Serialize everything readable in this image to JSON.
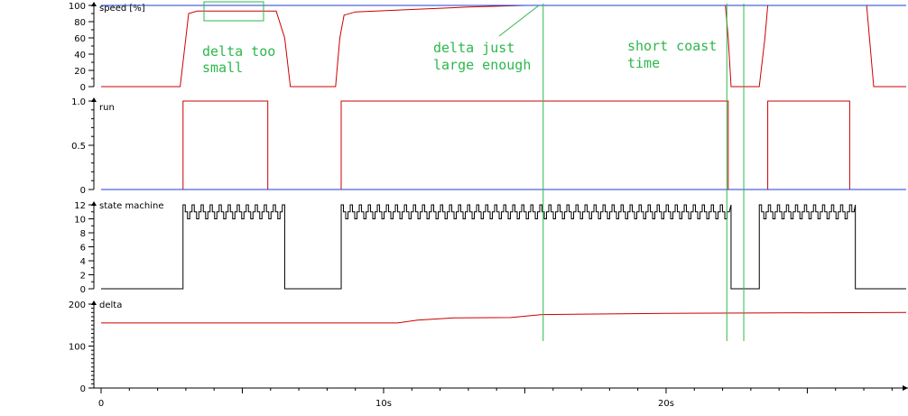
{
  "chart_data": [
    {
      "type": "line",
      "title": "speed [%]",
      "xlabel": "",
      "ylabel": "speed [%]",
      "ylim": [
        0,
        100
      ],
      "yticks": [
        "100",
        "80",
        "60",
        "40",
        "20",
        "0"
      ],
      "xlim": [
        0,
        28.5
      ],
      "series": [
        {
          "color": "#cc0000",
          "x": [
            0,
            2.8,
            3.0,
            3.1,
            3.4,
            6.2,
            6.5,
            6.7,
            8.3,
            8.45,
            8.6,
            9.0,
            11.0,
            13.0,
            15.0,
            15.6,
            22.1,
            22.2,
            22.3,
            22.7,
            23.3,
            23.5,
            23.6,
            27.1,
            27.2,
            27.35,
            28.5
          ],
          "values": [
            0,
            0,
            60,
            90,
            93,
            93,
            60,
            0,
            0,
            60,
            88,
            92,
            95,
            98,
            100,
            100,
            100,
            60,
            0,
            0,
            0,
            60,
            100,
            100,
            60,
            0,
            0
          ]
        },
        {
          "color": "#1f3fd0",
          "x": [
            0,
            28.5
          ],
          "values": [
            100,
            100
          ]
        }
      ]
    },
    {
      "type": "line",
      "title": "run",
      "ylabel": "run",
      "ylim": [
        0,
        1.0
      ],
      "yticks": [
        "1.0",
        "0.5",
        "0"
      ],
      "xlim": [
        0,
        28.5
      ],
      "series": [
        {
          "color": "#cc0000",
          "x": [
            0,
            2.9,
            2.9,
            5.9,
            5.9,
            8.5,
            8.5,
            22.2,
            22.2,
            23.6,
            23.6,
            26.5,
            26.5,
            28.5
          ],
          "values": [
            0,
            0,
            1,
            1,
            0,
            0,
            1,
            1,
            0,
            0,
            1,
            1,
            0,
            0
          ]
        },
        {
          "color": "#1f3fd0",
          "x": [
            0,
            28.5
          ],
          "values": [
            0,
            0
          ]
        }
      ]
    },
    {
      "type": "line",
      "title": "state machine",
      "ylabel": "state machine",
      "ylim": [
        0,
        12
      ],
      "yticks": [
        "12",
        "10",
        "8",
        "6",
        "4",
        "2",
        "0"
      ],
      "xlim": [
        0,
        28.5
      ],
      "segments": [
        {
          "x0": 0,
          "x1": 2.9,
          "kind": "low"
        },
        {
          "x0": 2.9,
          "x1": 6.5,
          "kind": "osc"
        },
        {
          "x0": 6.5,
          "x1": 8.5,
          "kind": "low"
        },
        {
          "x0": 8.5,
          "x1": 22.3,
          "kind": "osc"
        },
        {
          "x0": 22.3,
          "x1": 23.3,
          "kind": "low"
        },
        {
          "x0": 23.3,
          "x1": 26.7,
          "kind": "osc"
        },
        {
          "x0": 26.7,
          "x1": 28.5,
          "kind": "low"
        }
      ],
      "series": [
        {
          "color": "#000000",
          "low_value": 0,
          "osc_values": [
            10,
            11,
            12
          ]
        }
      ]
    },
    {
      "type": "line",
      "title": "delta",
      "ylabel": "delta",
      "ylim": [
        0,
        200
      ],
      "yticks": [
        "200",
        "100",
        "0"
      ],
      "xlim": [
        0,
        28.5
      ],
      "xticks": [
        {
          "x": 0,
          "label": "0"
        },
        {
          "x": 10,
          "label": "10s"
        },
        {
          "x": 20,
          "label": "20s"
        }
      ],
      "series": [
        {
          "color": "#cc0000",
          "x": [
            0,
            10.5,
            11.2,
            12.5,
            14.5,
            15.6,
            20.0,
            28.5
          ],
          "values": [
            155,
            155,
            162,
            167,
            168,
            175,
            178,
            180
          ]
        }
      ]
    }
  ],
  "annotations": [
    {
      "lines": [
        "delta too",
        "small"
      ],
      "color": "#2db84c"
    },
    {
      "lines": [
        "delta just",
        "large enough"
      ],
      "color": "#2db84c"
    },
    {
      "lines": [
        "short coast",
        "time"
      ],
      "color": "#2db84c"
    }
  ],
  "markers": {
    "color": "#2db84c",
    "x": [
      15.65,
      22.15,
      22.75
    ]
  }
}
